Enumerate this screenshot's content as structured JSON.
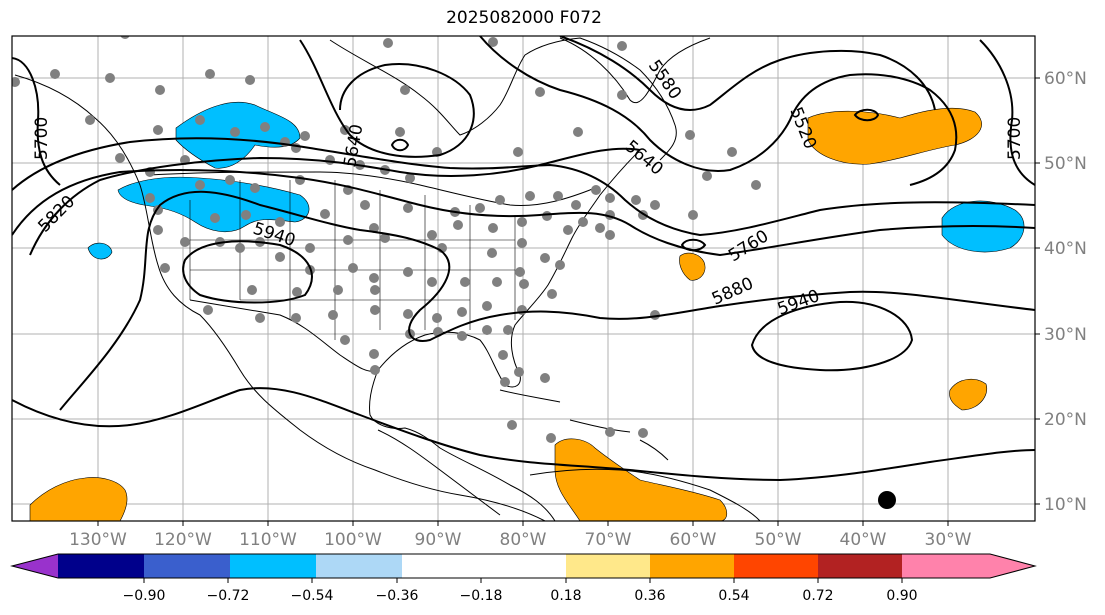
{
  "title": "2025082000 F072",
  "latitude_labels": [
    "60°N",
    "50°N",
    "40°N",
    "30°N",
    "20°N",
    "10°N"
  ],
  "longitude_labels": [
    "130°W",
    "120°W",
    "110°W",
    "100°W",
    "90°W",
    "80°W",
    "70°W",
    "60°W",
    "50°W",
    "40°W",
    "30°W"
  ],
  "contour_labels": [
    "5520",
    "5580",
    "5640",
    "5640",
    "5700",
    "5700",
    "5760",
    "5820",
    "5880",
    "5940",
    "5940"
  ],
  "colorbar": {
    "ticks": [
      "−0.90",
      "−0.72",
      "−0.54",
      "−0.36",
      "−0.18",
      "0.18",
      "0.36",
      "0.54",
      "0.72",
      "0.90"
    ],
    "colors": [
      "#9932cc",
      "#00008b",
      "#3a5fcd",
      "#00bfff",
      "#add8f6",
      "#ffffff",
      "#ffe88a",
      "#ffa500",
      "#ff4500",
      "#b22222",
      "#ff82ab"
    ]
  },
  "colors": {
    "negative_fill": "#00bfff",
    "positive_fill": "#ffa500",
    "station_dot": "#808080",
    "contour": "#000000",
    "grid": "#b0b0b0"
  }
}
